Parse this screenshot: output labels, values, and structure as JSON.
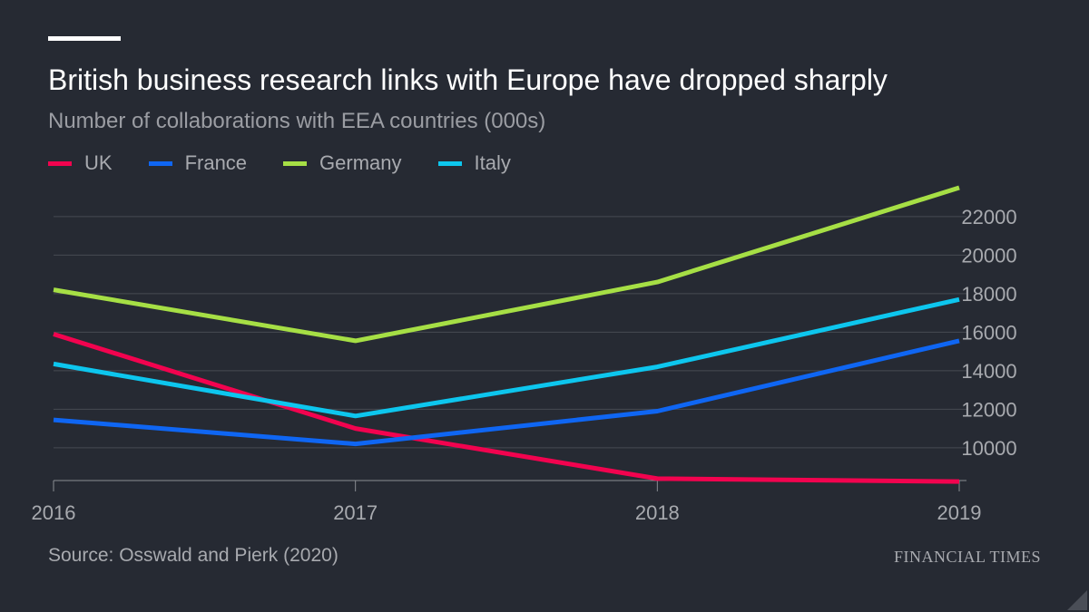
{
  "title": "British business research links with Europe have dropped sharply",
  "subtitle": "Number of collaborations with EEA countries (000s)",
  "source": "Source: Osswald and Pierk (2020)",
  "brand": "FINANCIAL TIMES",
  "legend": [
    {
      "label": "UK",
      "color": "#f2034f"
    },
    {
      "label": "France",
      "color": "#0f66f3"
    },
    {
      "label": "Germany",
      "color": "#a6df45"
    },
    {
      "label": "Italy",
      "color": "#0dc6ee"
    }
  ],
  "chart_data": {
    "type": "line",
    "title": "British business research links with Europe have dropped sharply",
    "subtitle": "Number of collaborations with EEA countries (000s)",
    "xlabel": "",
    "ylabel": "",
    "x": [
      "2016",
      "2017",
      "2018",
      "2019"
    ],
    "ylim": [
      8300,
      23500
    ],
    "y_ticks": [
      10000,
      12000,
      14000,
      16000,
      18000,
      20000,
      22000
    ],
    "y_tick_labels": [
      "10000",
      "12000",
      "14000",
      "16000",
      "18000",
      "20000",
      "22000"
    ],
    "x_tick_labels": [
      "2016",
      "2017",
      "2018",
      "2019"
    ],
    "y_axis_position": "right",
    "grid": true,
    "legend_position": "top-left",
    "series": [
      {
        "name": "UK",
        "color": "#f2034f",
        "values": [
          15900,
          11000,
          8400,
          8250
        ]
      },
      {
        "name": "France",
        "color": "#0f66f3",
        "values": [
          11450,
          10200,
          11900,
          15550
        ]
      },
      {
        "name": "Germany",
        "color": "#a6df45",
        "values": [
          18200,
          15550,
          18600,
          23500
        ]
      },
      {
        "name": "Italy",
        "color": "#0dc6ee",
        "values": [
          14350,
          11650,
          14200,
          17700
        ]
      }
    ]
  }
}
